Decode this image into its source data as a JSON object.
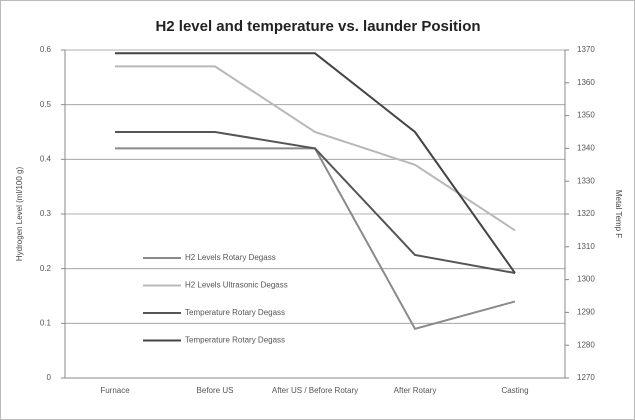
{
  "chart_data": {
    "type": "line",
    "title": "H2 level and temperature vs. launder Position",
    "y_label": "Hydrogen Level (ml/100 g)",
    "y2_label": "Metal Temp F",
    "categories": [
      "Furnace",
      "Before US",
      "After US / Before Rotary",
      "After Rotary",
      "Casting"
    ],
    "ylim": [
      0,
      0.6
    ],
    "yticks": [
      0,
      0.1,
      0.2,
      0.3,
      0.4,
      0.5,
      0.6
    ],
    "y2lim": [
      1270,
      1370
    ],
    "y2ticks": [
      1270,
      1280,
      1290,
      1300,
      1310,
      1320,
      1330,
      1340,
      1350,
      1360,
      1370
    ],
    "grid": true,
    "legend": "left",
    "series": [
      {
        "name": "H2 Levels Rotary Degass",
        "color": "#8a8a8a",
        "values": [
          0.42,
          0.42,
          0.42,
          0.09,
          0.14
        ]
      },
      {
        "name": "H2 Levels Ultrasonic Degass",
        "color": "#b8b8b8",
        "values": [
          0.57,
          0.57,
          0.45,
          0.39,
          0.27
        ]
      },
      {
        "name": "Temperature Rotary Degass",
        "color": "#555555",
        "axis": "y2",
        "values": [
          1345,
          1345,
          1340,
          1307.5,
          1302
        ]
      },
      {
        "name": "Temperature Rotary Degass",
        "color": "#444444",
        "axis": "y2",
        "values": [
          1369,
          1369,
          1369,
          1345,
          1302
        ]
      }
    ]
  }
}
